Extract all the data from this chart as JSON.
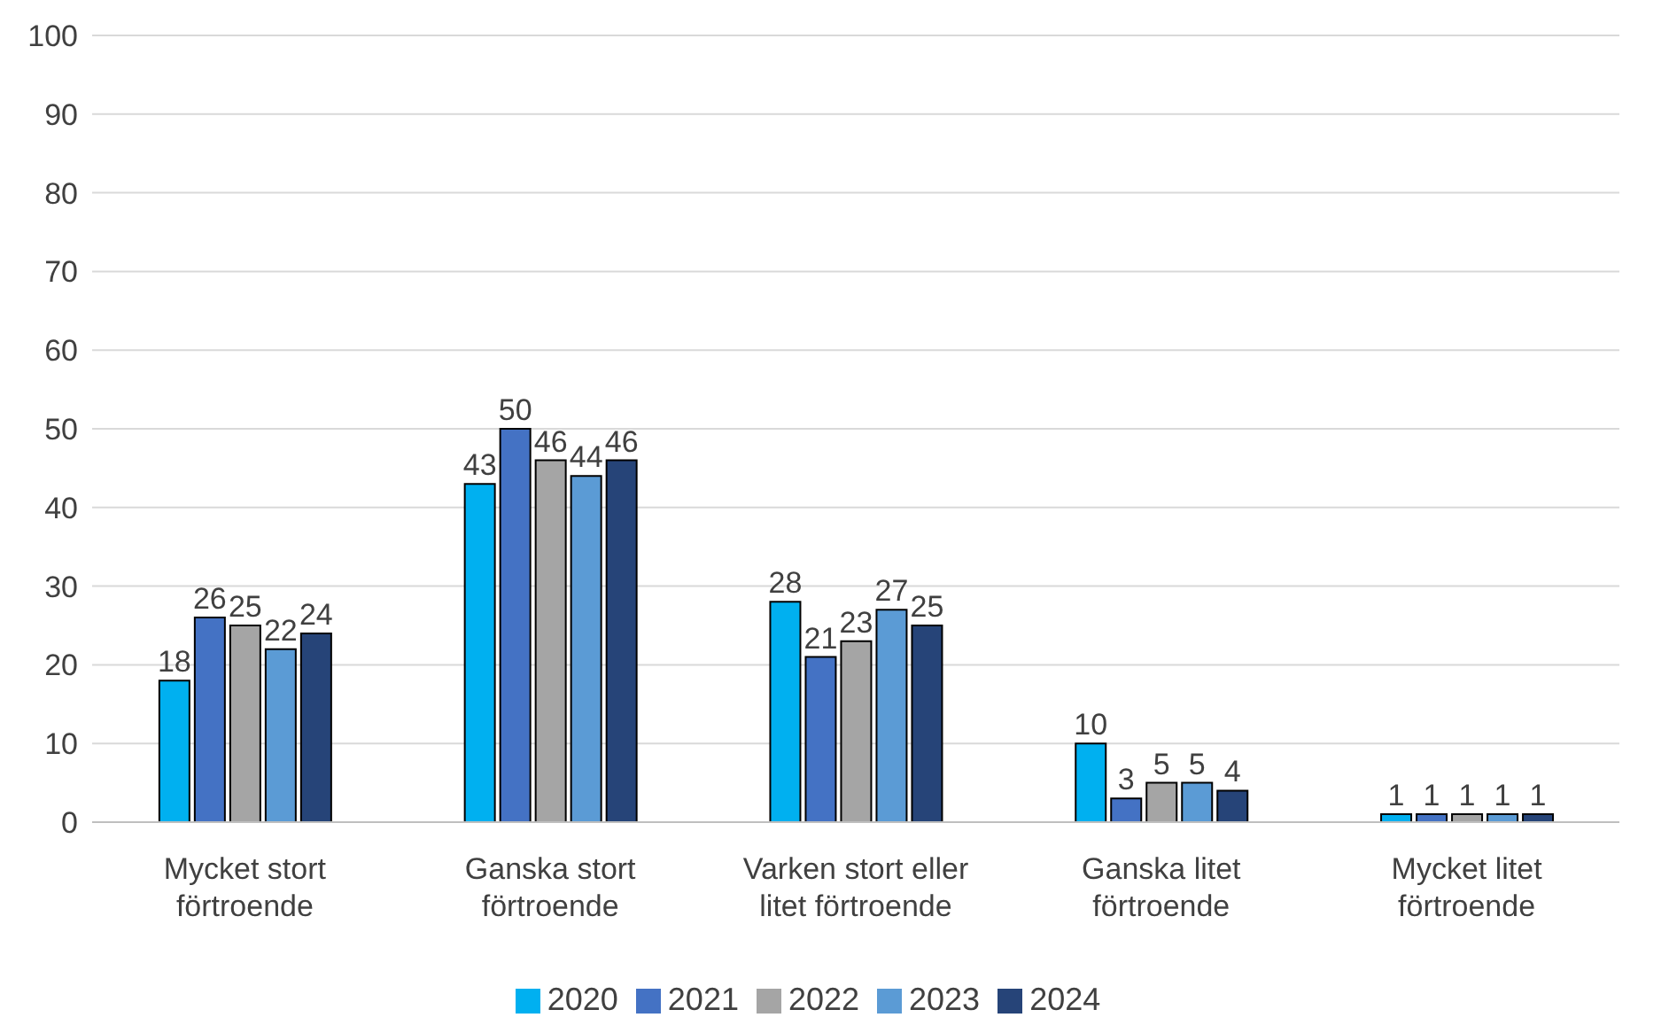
{
  "chart_data": {
    "type": "bar",
    "categories": [
      "Mycket stort förtroende",
      "Ganska stort förtroende",
      "Varken stort eller litet förtroende",
      "Ganska litet förtroende",
      "Mycket litet förtroende"
    ],
    "series": [
      {
        "name": "2020",
        "color": "#00b0f0",
        "values": [
          18,
          43,
          28,
          10,
          1
        ]
      },
      {
        "name": "2021",
        "color": "#4472c4",
        "values": [
          26,
          50,
          21,
          3,
          1
        ]
      },
      {
        "name": "2022",
        "color": "#a5a5a5",
        "values": [
          25,
          46,
          23,
          5,
          1
        ]
      },
      {
        "name": "2023",
        "color": "#5b9bd5",
        "values": [
          22,
          44,
          27,
          5,
          1
        ]
      },
      {
        "name": "2024",
        "color": "#264478",
        "values": [
          24,
          46,
          25,
          4,
          1
        ]
      }
    ],
    "ylim": [
      0,
      100
    ],
    "yticks": [
      0,
      10,
      20,
      30,
      40,
      50,
      60,
      70,
      80,
      90,
      100
    ],
    "grid": "y",
    "legend": "bottom",
    "data_labels": true
  }
}
